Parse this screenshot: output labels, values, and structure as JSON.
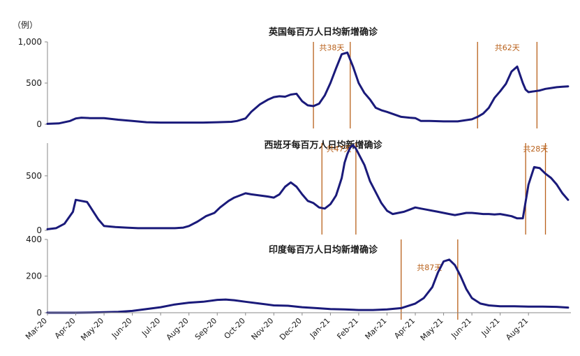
{
  "unit_label": "（例）",
  "x_tick_labels": [
    "Mar-20",
    "Apr-20",
    "May-20",
    "Jun-20",
    "Jul-20",
    "Aug-20",
    "Sep-20",
    "Oct-20",
    "Nov-20",
    "Dec-20",
    "Jan-21",
    "Feb-21",
    "Mar-21",
    "Apr-21",
    "May-21",
    "Jun-21",
    "Jul-21",
    "Aug-21"
  ],
  "colors": {
    "series": "#1a1a7a",
    "marker": "#b8601a",
    "marker_text": "#b8601a",
    "axis": "#888888",
    "text": "#1a1a1a"
  },
  "chart_data": [
    {
      "type": "line",
      "title": "英国每百万人日均新增确诊",
      "ylim": [
        0,
        1000
      ],
      "yticks": [
        {
          "value": 0,
          "label": "0"
        },
        {
          "value": 500,
          "label": "500"
        },
        {
          "value": 1000,
          "label": "1,000"
        }
      ],
      "series": [
        {
          "x": [
            0,
            0.4,
            0.8,
            1.0,
            1.2,
            1.5,
            2.0,
            2.5,
            3.0,
            3.5,
            4.0,
            4.5,
            5.0,
            5.5,
            6.0,
            6.5,
            6.7,
            7.0,
            7.2,
            7.5,
            7.8,
            8.0,
            8.2,
            8.4,
            8.6,
            8.8,
            9.0,
            9.2,
            9.4,
            9.6,
            9.8,
            10.0,
            10.2,
            10.4,
            10.6,
            10.8,
            11.0,
            11.2,
            11.4,
            11.6,
            11.8,
            12.0,
            12.5,
            12.8,
            13.0,
            13.2,
            13.5,
            14.0,
            14.5,
            15.0,
            15.2,
            15.4,
            15.6,
            15.8,
            16.0,
            16.2,
            16.4,
            16.6,
            16.8,
            16.9,
            17.0,
            17.2,
            17.4,
            17.6,
            17.8,
            18.0,
            18.2,
            18.4
          ],
          "values": [
            5,
            10,
            40,
            70,
            80,
            75,
            75,
            55,
            40,
            25,
            20,
            20,
            20,
            20,
            25,
            30,
            40,
            70,
            150,
            240,
            300,
            330,
            340,
            335,
            360,
            370,
            280,
            230,
            220,
            250,
            350,
            500,
            680,
            850,
            870,
            700,
            500,
            380,
            300,
            200,
            170,
            150,
            90,
            80,
            75,
            40,
            40,
            35,
            35,
            60,
            90,
            130,
            200,
            320,
            400,
            490,
            640,
            700,
            500,
            420,
            390,
            400,
            410,
            430,
            440,
            450,
            455,
            460
          ]
        }
      ],
      "markers": [
        {
          "x": 9.4,
          "x_end": 10.7,
          "label": "共38天"
        },
        {
          "x": 15.2,
          "x_end": 17.3,
          "label": "共62天"
        }
      ]
    },
    {
      "type": "line",
      "title": "西班牙每百万人日均新增确诊",
      "ylim": [
        0,
        800
      ],
      "yticks": [
        {
          "value": 0,
          "label": "0"
        },
        {
          "value": 500,
          "label": "500"
        }
      ],
      "series": [
        {
          "x": [
            0,
            0.3,
            0.6,
            0.9,
            1.0,
            1.2,
            1.4,
            1.6,
            1.8,
            2.0,
            2.4,
            2.8,
            3.2,
            3.6,
            4.0,
            4.5,
            4.8,
            5.0,
            5.3,
            5.6,
            5.9,
            6.1,
            6.4,
            6.6,
            6.8,
            7.0,
            7.2,
            7.5,
            7.8,
            8.0,
            8.2,
            8.4,
            8.6,
            8.8,
            9.0,
            9.2,
            9.4,
            9.6,
            9.8,
            10.0,
            10.1,
            10.2,
            10.3,
            10.4,
            10.5,
            10.6,
            10.7,
            10.8,
            10.9,
            11.0,
            11.2,
            11.4,
            11.6,
            11.8,
            12.0,
            12.2,
            12.4,
            12.6,
            12.8,
            13.0,
            13.2,
            13.4,
            13.6,
            13.8,
            14.0,
            14.2,
            14.4,
            14.6,
            14.8,
            15.0,
            15.2,
            15.4,
            15.6,
            15.8,
            16.0,
            16.2,
            16.4,
            16.6,
            16.8,
            17.0,
            17.2,
            17.4,
            17.6,
            17.8,
            18.0,
            18.2,
            18.4
          ],
          "values": [
            10,
            20,
            60,
            170,
            280,
            270,
            260,
            180,
            100,
            40,
            30,
            25,
            20,
            20,
            20,
            20,
            25,
            40,
            80,
            130,
            160,
            210,
            270,
            300,
            320,
            340,
            330,
            320,
            310,
            300,
            330,
            400,
            440,
            400,
            330,
            270,
            250,
            210,
            200,
            240,
            280,
            320,
            400,
            480,
            620,
            700,
            760,
            780,
            750,
            700,
            600,
            450,
            350,
            250,
            180,
            150,
            160,
            170,
            190,
            210,
            200,
            190,
            180,
            170,
            160,
            150,
            140,
            150,
            160,
            160,
            155,
            150,
            150,
            145,
            150,
            140,
            130,
            110,
            110,
            420,
            580,
            570,
            520,
            480,
            420,
            340,
            280
          ]
        }
      ],
      "markers": [
        {
          "x": 9.7,
          "x_end": 10.9,
          "label": "共47天"
        },
        {
          "x": 16.9,
          "x_end": 17.6,
          "label": "共28天"
        }
      ]
    },
    {
      "type": "line",
      "title": "印度每百万人日均新增确诊",
      "ylim": [
        0,
        400
      ],
      "yticks": [
        {
          "value": 0,
          "label": "0"
        },
        {
          "value": 200,
          "label": "200"
        },
        {
          "value": 400,
          "label": "400"
        }
      ],
      "series": [
        {
          "x": [
            0,
            0.5,
            1.0,
            1.5,
            2.0,
            2.5,
            3.0,
            3.5,
            4.0,
            4.5,
            5.0,
            5.5,
            6.0,
            6.3,
            6.6,
            7.0,
            7.5,
            8.0,
            8.5,
            9.0,
            9.5,
            10.0,
            10.5,
            11.0,
            11.5,
            12.0,
            12.5,
            13.0,
            13.3,
            13.6,
            13.8,
            14.0,
            14.2,
            14.4,
            14.6,
            14.8,
            15.0,
            15.3,
            15.6,
            16.0,
            16.5,
            17.0,
            17.5,
            18.0,
            18.4
          ],
          "values": [
            0,
            0,
            0,
            1,
            3,
            5,
            10,
            20,
            30,
            45,
            55,
            60,
            70,
            72,
            68,
            60,
            50,
            40,
            38,
            30,
            25,
            20,
            18,
            15,
            15,
            18,
            25,
            50,
            80,
            140,
            220,
            280,
            290,
            260,
            200,
            130,
            80,
            50,
            40,
            35,
            35,
            33,
            33,
            32,
            28
          ]
        }
      ],
      "markers": [
        {
          "x": 12.5,
          "x_end": 14.5,
          "label": "共87天"
        }
      ]
    }
  ]
}
